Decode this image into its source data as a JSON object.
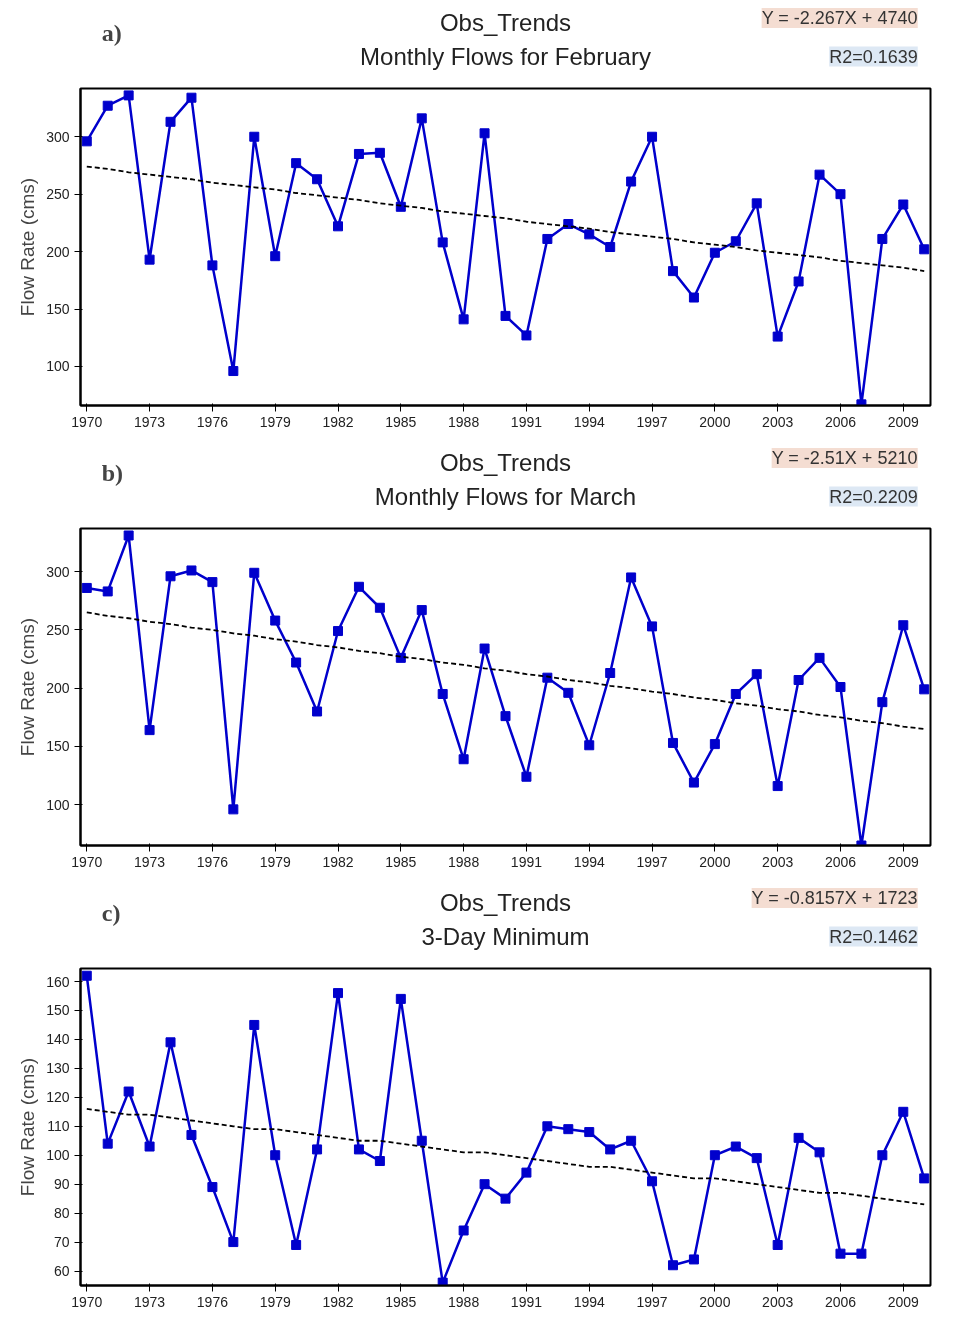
{
  "chart_data": [
    {
      "type": "line",
      "title": "Obs_Trends",
      "subtitle": "Monthly Flows for February",
      "ylabel": "Flow Rate (cms)",
      "annotations": [
        "a)",
        "Y = -2.267X + 4740",
        "R2=0.1639"
      ],
      "x": [
        1970,
        1971,
        1972,
        1973,
        1974,
        1975,
        1976,
        1977,
        1978,
        1979,
        1980,
        1981,
        1982,
        1983,
        1984,
        1985,
        1986,
        1987,
        1988,
        1989,
        1990,
        1991,
        1992,
        1993,
        1994,
        1995,
        1996,
        1997,
        1998,
        1999,
        2000,
        2001,
        2002,
        2003,
        2004,
        2005,
        2006,
        2007,
        2008,
        2009,
        2010
      ],
      "series": [
        {
          "color": "#0000cc",
          "values": [
            296,
            327,
            336,
            193,
            313,
            334,
            188,
            96,
            300,
            196,
            277,
            263,
            222,
            285,
            286,
            239,
            316,
            208,
            141,
            303,
            144,
            127,
            211,
            224,
            215,
            204,
            261,
            300,
            183,
            160,
            199,
            209,
            242,
            126,
            174,
            267,
            250,
            67,
            211,
            241,
            202
          ]
        },
        {
          "type": "line",
          "color": "#000000",
          "values": [
            274,
            272,
            269,
            267,
            265,
            263,
            260,
            258,
            256,
            254,
            251,
            249,
            247,
            245,
            242,
            240,
            238,
            235,
            233,
            231,
            229,
            226,
            224,
            222,
            220,
            217,
            215,
            213,
            211,
            208,
            206,
            204,
            201,
            199,
            197,
            195,
            192,
            190,
            188,
            186,
            183
          ],
          "line_style": "dashed",
          "marker": "none"
        }
      ],
      "xlim": [
        1969.7,
        2010.3
      ],
      "ylim": [
        66,
        342
      ],
      "xticks": [
        1970,
        1973,
        1976,
        1979,
        1982,
        1985,
        1988,
        1991,
        1994,
        1997,
        2000,
        2003,
        2006,
        2009
      ],
      "yticks": [
        100,
        150,
        200,
        250,
        300
      ],
      "marker": "square",
      "line_style": "solid",
      "grid": false
    },
    {
      "type": "line",
      "title": "Obs_Trends",
      "subtitle": "Monthly Flows for March",
      "ylabel": "Flow Rate (cms)",
      "annotations": [
        "b)",
        "Y = -2.51X + 5210",
        "R2=0.2209"
      ],
      "x": [
        1970,
        1971,
        1972,
        1973,
        1974,
        1975,
        1976,
        1977,
        1978,
        1979,
        1980,
        1981,
        1982,
        1983,
        1984,
        1985,
        1986,
        1987,
        1988,
        1989,
        1990,
        1991,
        1992,
        1993,
        1994,
        1995,
        1996,
        1997,
        1998,
        1999,
        2000,
        2001,
        2002,
        2003,
        2004,
        2005,
        2006,
        2007,
        2008,
        2009,
        2010
      ],
      "series": [
        {
          "color": "#0000cc",
          "values": [
            286,
            283,
            331,
            164,
            296,
            301,
            291,
            96,
            299,
            258,
            222,
            180,
            249,
            287,
            269,
            226,
            267,
            195,
            139,
            234,
            176,
            124,
            209,
            196,
            151,
            213,
            295,
            253,
            153,
            119,
            152,
            195,
            212,
            116,
            207,
            226,
            201,
            65,
            188,
            254,
            199
          ]
        },
        {
          "type": "line",
          "color": "#000000",
          "values": [
            265,
            262,
            260,
            257,
            255,
            252,
            250,
            247,
            245,
            242,
            240,
            237,
            235,
            232,
            230,
            227,
            225,
            222,
            220,
            217,
            215,
            212,
            210,
            207,
            205,
            202,
            200,
            197,
            195,
            192,
            190,
            187,
            185,
            182,
            180,
            177,
            175,
            172,
            170,
            167,
            165
          ],
          "line_style": "dashed",
          "marker": "none"
        }
      ],
      "xlim": [
        1969.7,
        2010.3
      ],
      "ylim": [
        65,
        337
      ],
      "xticks": [
        1970,
        1973,
        1976,
        1979,
        1982,
        1985,
        1988,
        1991,
        1994,
        1997,
        2000,
        2003,
        2006,
        2009
      ],
      "yticks": [
        100,
        150,
        200,
        250,
        300
      ],
      "marker": "square",
      "line_style": "solid",
      "grid": false
    },
    {
      "type": "line",
      "title": "Obs_Trends",
      "subtitle": "3-Day Minimum",
      "ylabel": "Flow Rate (cms)",
      "annotations": [
        "c)",
        "Y = -0.8157X + 1723",
        "R2=0.1462"
      ],
      "x": [
        1970,
        1971,
        1972,
        1973,
        1974,
        1975,
        1976,
        1977,
        1978,
        1979,
        1980,
        1981,
        1982,
        1983,
        1984,
        1985,
        1986,
        1987,
        1988,
        1989,
        1990,
        1991,
        1992,
        1993,
        1994,
        1995,
        1996,
        1997,
        1998,
        1999,
        2000,
        2001,
        2002,
        2003,
        2004,
        2005,
        2006,
        2007,
        2008,
        2009,
        2010
      ],
      "series": [
        {
          "color": "#0000cc",
          "values": [
            162,
            104,
            122,
            103,
            139,
            107,
            89,
            70,
            145,
            100,
            69,
            102,
            156,
            102,
            98,
            154,
            105,
            56,
            74,
            90,
            85,
            94,
            110,
            109,
            108,
            102,
            105,
            91,
            62,
            64,
            100,
            103,
            99,
            69,
            106,
            101,
            66,
            66,
            100,
            115,
            92
          ]
        },
        {
          "type": "line",
          "color": "#000000",
          "values": [
            116,
            115,
            114,
            114,
            113,
            112,
            111,
            110,
            109,
            109,
            108,
            107,
            106,
            105,
            105,
            104,
            103,
            102,
            101,
            101,
            100,
            99,
            98,
            97,
            96,
            96,
            95,
            94,
            93,
            92,
            92,
            91,
            90,
            89,
            88,
            87,
            87,
            86,
            85,
            84,
            83
          ],
          "line_style": "dashed",
          "marker": "none"
        }
      ],
      "xlim": [
        1969.7,
        2010.3
      ],
      "ylim": [
        55,
        164.5
      ],
      "xticks": [
        1970,
        1973,
        1976,
        1979,
        1982,
        1985,
        1988,
        1991,
        1994,
        1997,
        2000,
        2003,
        2006,
        2009
      ],
      "yticks": [
        60,
        70,
        80,
        90,
        100,
        110,
        120,
        130,
        140,
        150,
        160
      ],
      "marker": "square",
      "line_style": "solid",
      "grid": false
    }
  ]
}
